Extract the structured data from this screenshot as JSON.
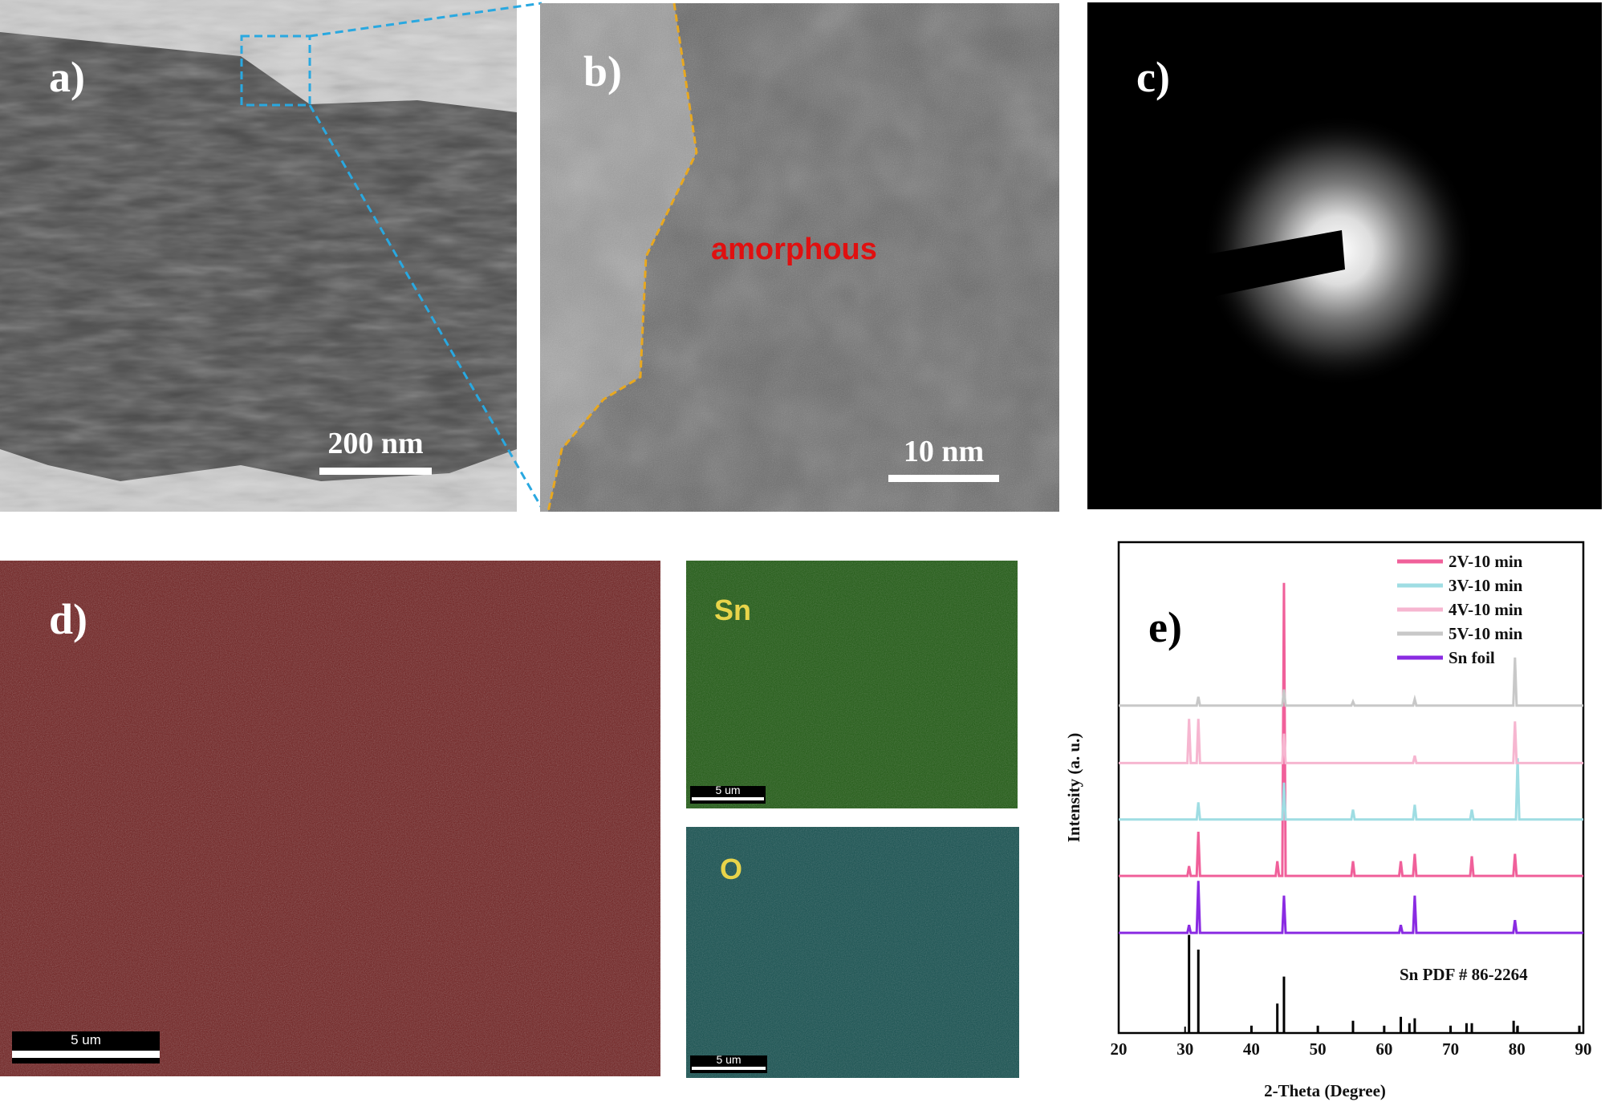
{
  "panels": {
    "a": {
      "label": "a)",
      "scale_bar": "200 nm"
    },
    "b": {
      "label": "b)",
      "scale_bar": "10 nm",
      "annotation": "amorphous"
    },
    "c": {
      "label": "c)"
    },
    "d": {
      "label": "d)",
      "scale_bar": "5 um"
    },
    "sn_map": {
      "label": "Sn",
      "scale_bar": "5 um"
    },
    "o_map": {
      "label": "O",
      "scale_bar": "5 um"
    }
  },
  "chart_data": {
    "type": "line",
    "panel_label": "e)",
    "x_label": "2-Theta (Degree)",
    "y_label": "Intensity (a. u.)",
    "xlim": [
      20,
      90
    ],
    "xticks": [
      20,
      30,
      40,
      50,
      60,
      70,
      80,
      90
    ],
    "ylim": [
      0,
      100
    ],
    "legend": "upper-right",
    "series": [
      {
        "name": "2V-10 min",
        "color": "#f0609a",
        "x": [
          20,
          30.35,
          30.6,
          30.85,
          31.75,
          32,
          32.25,
          43.65,
          43.9,
          44.15,
          44.65,
          44.9,
          45.15,
          55.05,
          55.3,
          55.55,
          62.25,
          62.5,
          62.75,
          64.35,
          64.6,
          64.85,
          72.95,
          73.2,
          73.45,
          79.45,
          79.7,
          79.95,
          90
        ],
        "values": [
          32,
          32,
          34,
          32,
          32,
          41,
          32,
          32,
          35,
          32,
          32,
          91.7,
          32,
          32,
          35,
          32,
          32,
          35,
          32,
          32,
          36.5,
          32,
          32,
          36,
          32,
          32,
          36.5,
          32,
          32
        ]
      },
      {
        "name": "3V-10 min",
        "color": "#9fdde3",
        "x": [
          20,
          31.75,
          32,
          32.25,
          44.65,
          44.9,
          45.15,
          55.05,
          55.3,
          55.55,
          64.35,
          64.6,
          64.85,
          72.95,
          73.2,
          73.45,
          79.85,
          80.1,
          80.35,
          90
        ],
        "values": [
          43.5,
          43.5,
          47,
          43.5,
          43.5,
          51,
          43.5,
          43.5,
          45.5,
          43.5,
          43.5,
          46.5,
          43.5,
          43.5,
          45.5,
          43.5,
          43.5,
          56,
          43.5,
          43.5
        ]
      },
      {
        "name": "4V-10 min",
        "color": "#f6b6d0",
        "x": [
          20,
          30.35,
          30.6,
          30.85,
          31.75,
          32,
          32.25,
          44.65,
          44.9,
          45.15,
          64.35,
          64.6,
          64.85,
          79.45,
          79.7,
          79.95,
          90
        ],
        "values": [
          55,
          55,
          64,
          55,
          55,
          64,
          55,
          55,
          61,
          55,
          55,
          56.5,
          55,
          55,
          63.5,
          55,
          55
        ]
      },
      {
        "name": "5V-10 min",
        "color": "#c8c8c8",
        "x": [
          20,
          31.75,
          32,
          32.25,
          44.65,
          44.9,
          45.15,
          55.05,
          55.3,
          55.55,
          64.35,
          64.6,
          64.85,
          79.45,
          79.7,
          79.95,
          90
        ],
        "values": [
          66.7,
          66.7,
          68.5,
          66.7,
          66.7,
          70,
          66.7,
          66.7,
          67.5,
          66.7,
          66.7,
          68,
          66.7,
          66.7,
          76.5,
          66.7,
          66.7
        ]
      },
      {
        "name": "Sn foil",
        "color": "#8a2be2",
        "x": [
          20,
          30.35,
          30.6,
          30.85,
          31.75,
          32,
          32.25,
          44.65,
          44.9,
          45.15,
          62.25,
          62.5,
          62.75,
          64.35,
          64.6,
          64.85,
          79.45,
          79.7,
          79.95,
          90
        ],
        "values": [
          20.4,
          20.4,
          22,
          20.4,
          20.4,
          31,
          20.4,
          20.4,
          28,
          20.4,
          20.4,
          22,
          20.4,
          20.4,
          28,
          20.4,
          20.4,
          23,
          20.4,
          20.4
        ]
      }
    ],
    "reference": {
      "name": "Sn PDF # 86-2264",
      "color": "#000000",
      "x": [
        30.6,
        32.0,
        40.0,
        43.9,
        44.9,
        50.0,
        55.3,
        60.0,
        62.5,
        63.8,
        64.6,
        70.0,
        72.4,
        73.2,
        79.5,
        80.1,
        89.4
      ],
      "values": [
        20,
        17,
        1.5,
        6,
        11.5,
        1.5,
        2.5,
        1.5,
        3.3,
        2,
        3,
        1.5,
        2,
        2,
        2.5,
        1.5,
        1.5
      ]
    }
  }
}
